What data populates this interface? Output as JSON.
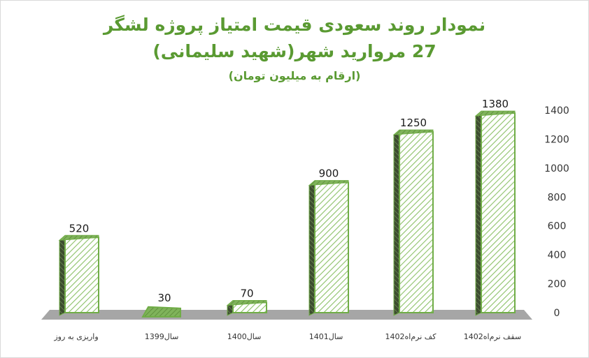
{
  "chart_data": {
    "type": "bar",
    "title": "نمودار روند سعودی قیمت امتیاز پروژه لشگر",
    "subtitle": "27 مروارید شهر(شهید سلیمانی)",
    "note": "(ارقام به میلیون تومان)",
    "categories": [
      "واریزی به روز",
      "سال1399",
      "سال1400",
      "سال1401",
      "کف نرم‌اه1402",
      "سقف نرم‌اه1402"
    ],
    "values": [
      520,
      30,
      70,
      900,
      1250,
      1380
    ],
    "data_labels": [
      "520",
      "30",
      "70",
      "900",
      "1250",
      "1380"
    ],
    "y_ticks": [
      0,
      200,
      400,
      600,
      800,
      1000,
      1200,
      1400
    ],
    "ylim": [
      0,
      1400
    ],
    "y_axis_position": "right",
    "grid": false,
    "colors": {
      "title": "#5a9a32",
      "bar_edge": "#70ad47",
      "bar_hatch": "#8cc168",
      "bar_side": "#3d4d30",
      "floor": "#a6a6a6",
      "watermark": "#d0d0d0"
    }
  }
}
